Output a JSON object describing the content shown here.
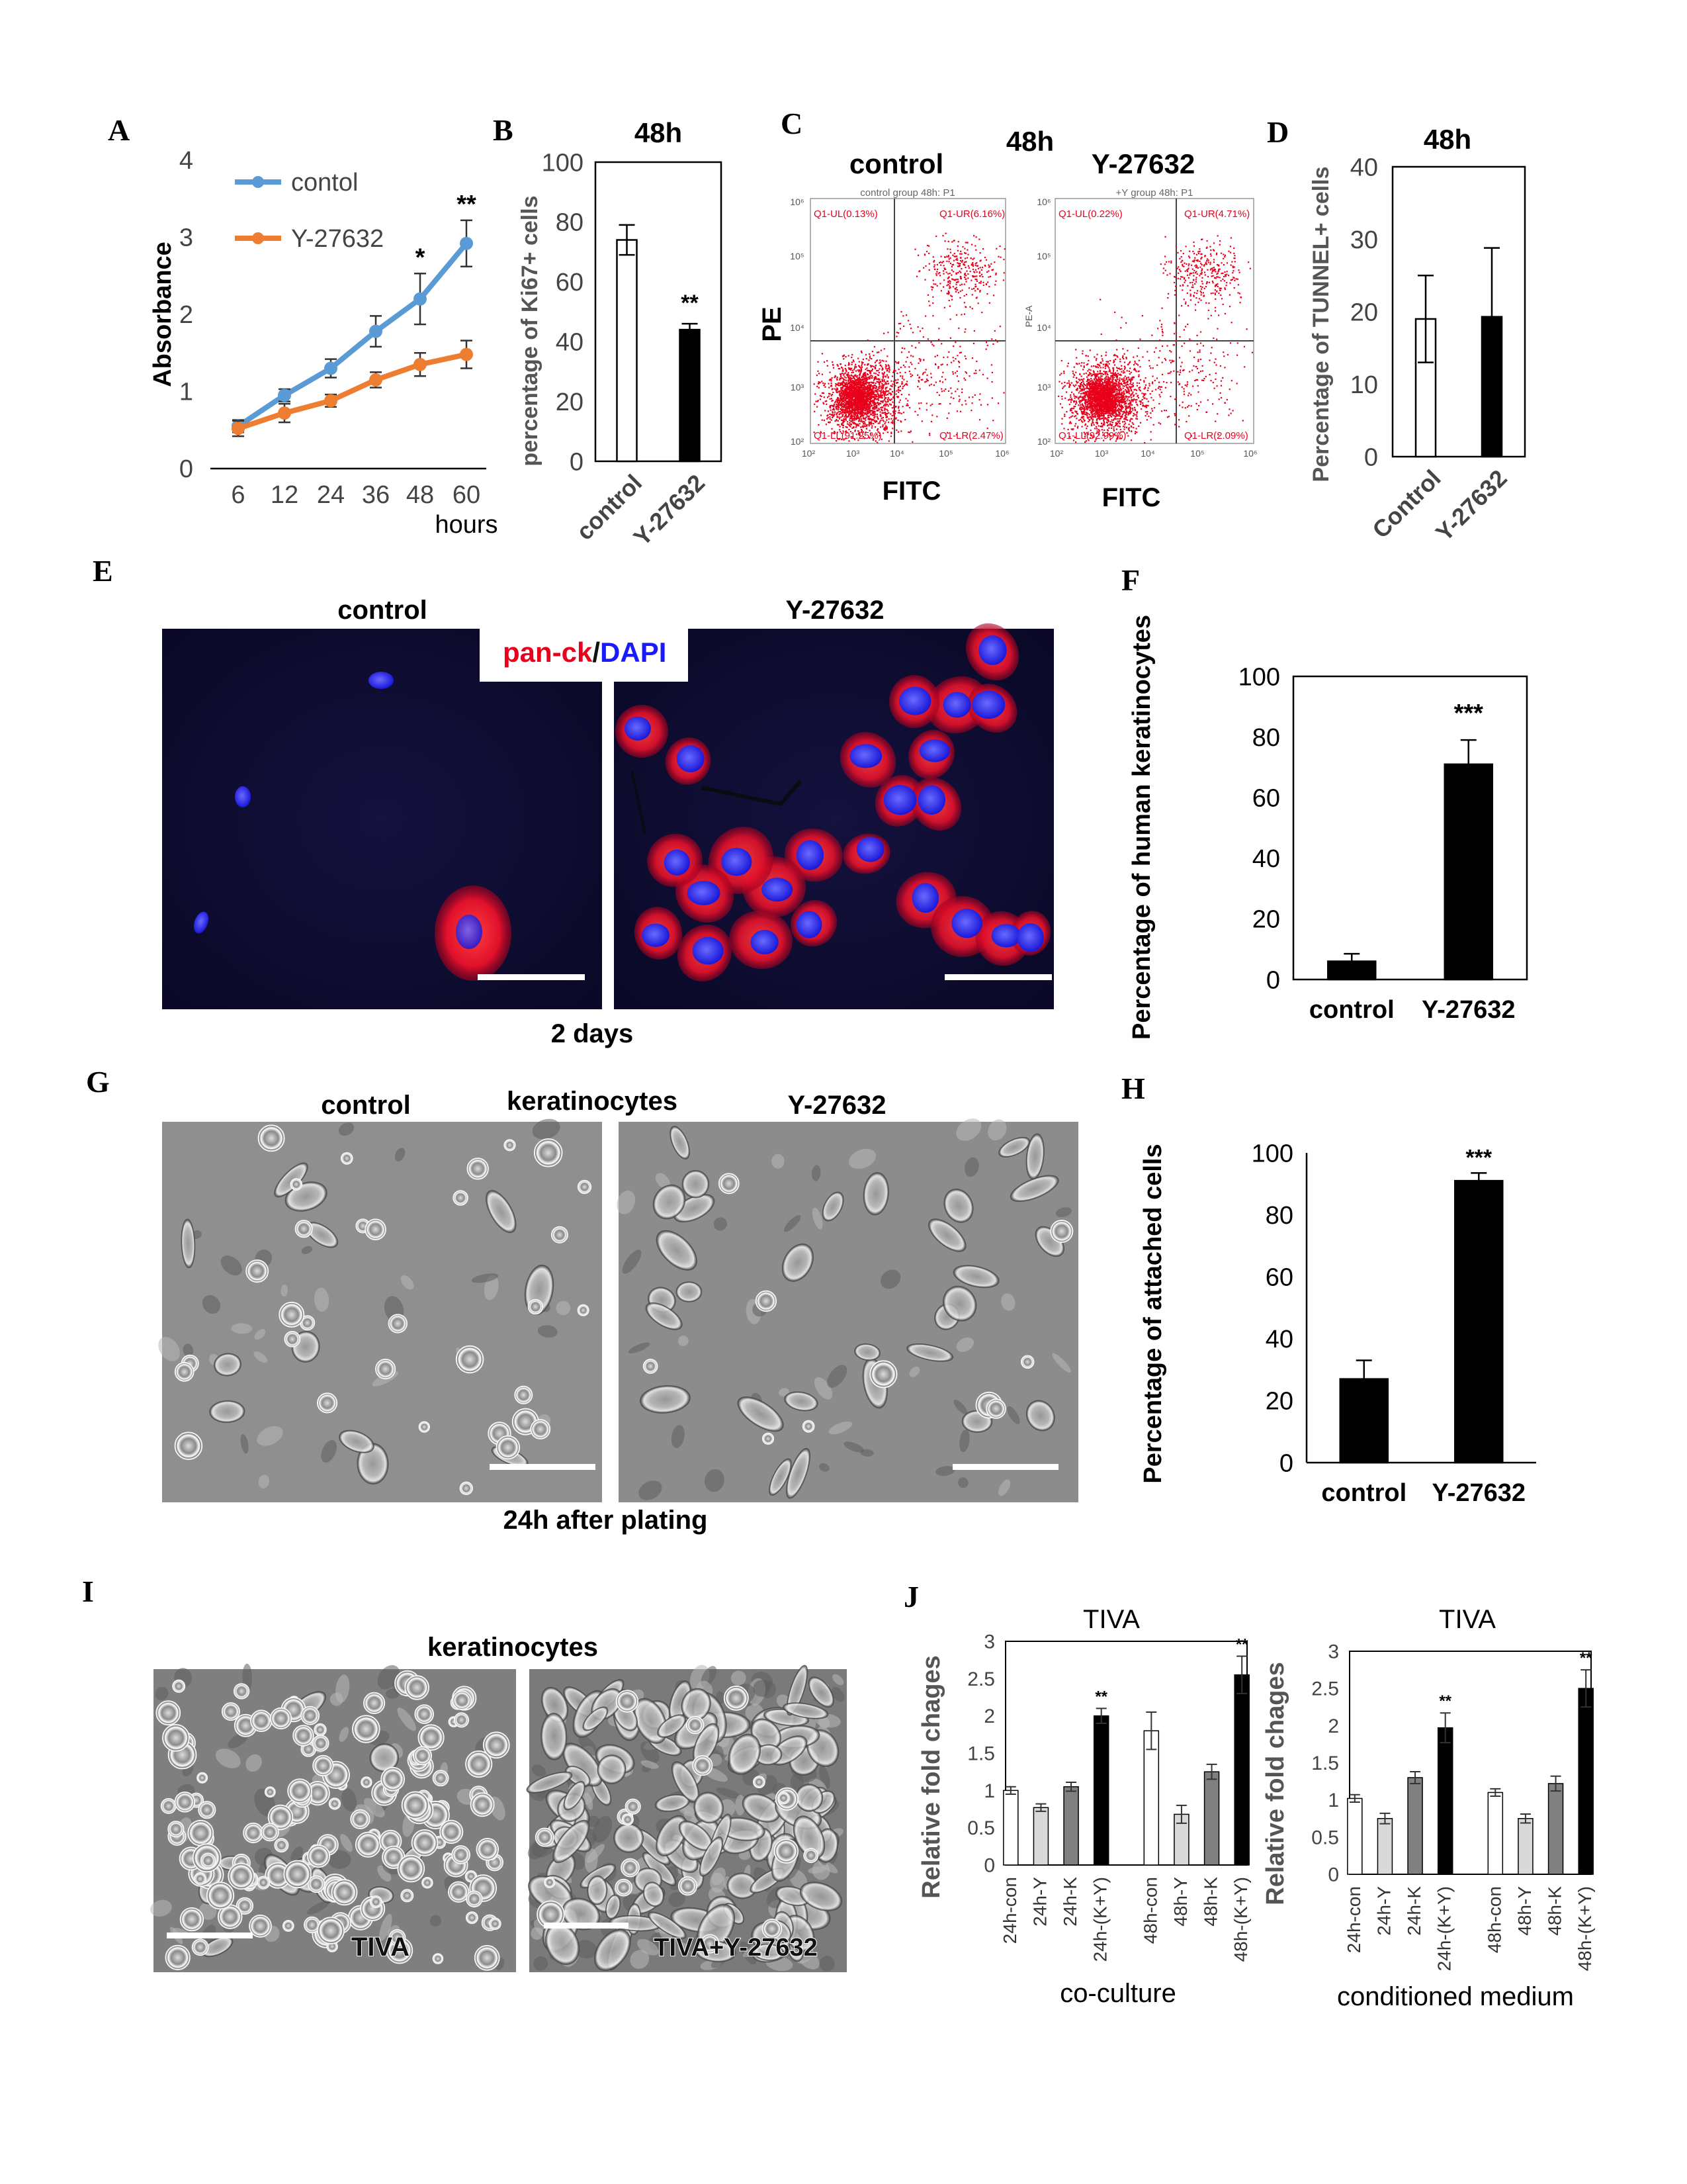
{
  "panel_letters": [
    "A",
    "B",
    "C",
    "D",
    "E",
    "F",
    "G",
    "H",
    "I",
    "J"
  ],
  "colors": {
    "control": "#5b9bd5",
    "y27632": "#ed7d31",
    "bar_black": "#000000",
    "bar_white": "#ffffff",
    "bar_light": "#d9d9d9",
    "bar_mid": "#808080",
    "flow_dots": "#e8001c",
    "panck": "#e8001c",
    "dapi": "#1a1aff"
  },
  "panel_C": {
    "title": "48h",
    "control_label": "control",
    "y_label": "Y-27632",
    "ylabel": "PE",
    "ylabel_alt": "PE-A",
    "xlabel": "FITC",
    "plot_control": {
      "header": "control group 48h: P1",
      "q_ul": "Q1-UL(0.13%)",
      "q_ur": "Q1-UR(6.16%)",
      "q_ll": "Q1-LL(91.25%)",
      "q_lr": "Q1-LR(2.47%)"
    },
    "plot_y": {
      "header": "+Y group 48h: P1",
      "q_ul": "Q1-UL(0.22%)",
      "q_ur": "Q1-UR(4.71%)",
      "q_ll": "Q1-LL(92.99%)",
      "q_lr": "Q1-LR(2.09%)"
    },
    "axis_ticks": [
      "10²",
      "10³",
      "10⁴",
      "10⁵",
      "10⁶"
    ]
  },
  "panel_E": {
    "control_label": "control",
    "y_label": "Y-27632",
    "stain_red": "pan-ck",
    "stain_sep": "/",
    "stain_blue": "DAPI",
    "caption": "2 days"
  },
  "panel_G": {
    "control_label": "control",
    "title": "keratinocytes",
    "y_label": "Y-27632",
    "caption": "24h after plating"
  },
  "panel_I": {
    "title": "keratinocytes",
    "left_label": "TIVA",
    "right_label": "TIVA+Y-27632"
  },
  "chart_data": [
    {
      "id": "A",
      "type": "line",
      "categories": [
        "6",
        "12",
        "24",
        "36",
        "48",
        "60"
      ],
      "xlabel": "hours",
      "ylabel": "Absorbance",
      "ylim": [
        0,
        4
      ],
      "yticks": [
        "0",
        "1",
        "2",
        "3",
        "4"
      ],
      "legend_position": "top-left",
      "series": [
        {
          "name": "contol",
          "color": "#5b9bd5",
          "values": [
            0.55,
            0.95,
            1.3,
            1.78,
            2.2,
            2.92
          ],
          "errors": [
            0.08,
            0.08,
            0.12,
            0.2,
            0.33,
            0.3
          ]
        },
        {
          "name": "Y-27632",
          "color": "#ed7d31",
          "values": [
            0.52,
            0.72,
            0.88,
            1.15,
            1.35,
            1.48
          ],
          "errors": [
            0.1,
            0.12,
            0.08,
            0.1,
            0.15,
            0.18
          ]
        }
      ],
      "annotations": [
        {
          "category": "48",
          "text": "*"
        },
        {
          "category": "60",
          "text": "**"
        }
      ]
    },
    {
      "id": "B",
      "type": "bar",
      "title": "48h",
      "categories": [
        "control",
        "Y-27632"
      ],
      "values": [
        74,
        44
      ],
      "errors": [
        5,
        2
      ],
      "fills": [
        "#ffffff",
        "#000000"
      ],
      "ylabel": "percentage of Ki67+ cells",
      "ylim": [
        0,
        100
      ],
      "yticks": [
        "0",
        "20",
        "40",
        "60",
        "80",
        "100"
      ],
      "annotations": [
        "",
        "**"
      ]
    },
    {
      "id": "D",
      "type": "bar",
      "title": "48h",
      "categories": [
        "Control",
        "Y-27632"
      ],
      "values": [
        19,
        19.3
      ],
      "errors": [
        6,
        9.5
      ],
      "fills": [
        "#ffffff",
        "#000000"
      ],
      "ylabel": "Percentage of TUNNEL+ cells",
      "ylim": [
        0,
        40
      ],
      "yticks": [
        "0",
        "10",
        "20",
        "30",
        "40"
      ]
    },
    {
      "id": "F",
      "type": "bar",
      "categories": [
        "control",
        "Y-27632"
      ],
      "values": [
        6,
        71
      ],
      "errors": [
        2.5,
        8
      ],
      "fills": [
        "#000000",
        "#000000"
      ],
      "ylabel": "Percentage of human keratinocytes",
      "ylim": [
        0,
        100
      ],
      "yticks": [
        "0",
        "20",
        "40",
        "60",
        "80",
        "100"
      ],
      "annotations": [
        "",
        "***"
      ]
    },
    {
      "id": "H",
      "type": "bar",
      "categories": [
        "control",
        "Y-27632"
      ],
      "values": [
        27,
        91
      ],
      "errors": [
        6,
        2.5
      ],
      "fills": [
        "#000000",
        "#000000"
      ],
      "ylabel": "Percentage of attached cells",
      "ylim": [
        0,
        100
      ],
      "yticks": [
        "0",
        "20",
        "40",
        "60",
        "80",
        "100"
      ],
      "annotations": [
        "",
        "***"
      ]
    },
    {
      "id": "J1",
      "type": "bar",
      "title": "TIVA",
      "caption": "co-culture",
      "categories": [
        "24h-con",
        "24h-Y",
        "24h-K",
        "24h-(K+Y)",
        "48h-con",
        "48h-Y",
        "48h-K",
        "48h-(K+Y)"
      ],
      "values": [
        1.0,
        0.77,
        1.05,
        2.0,
        1.8,
        0.68,
        1.25,
        2.55
      ],
      "errors": [
        0.05,
        0.05,
        0.06,
        0.1,
        0.25,
        0.12,
        0.1,
        0.25
      ],
      "fills": [
        "#ffffff",
        "#d9d9d9",
        "#808080",
        "#000000",
        "#ffffff",
        "#d9d9d9",
        "#808080",
        "#000000"
      ],
      "ylabel": "Relative fold chages",
      "ylim": [
        0,
        3
      ],
      "yticks": [
        "0",
        "0.5",
        "1",
        "1.5",
        "2",
        "2.5",
        "3"
      ],
      "annotations": [
        "",
        "",
        "",
        "**",
        "",
        "",
        "",
        "**"
      ]
    },
    {
      "id": "J2",
      "type": "bar",
      "title": "TIVA",
      "caption": "conditioned medium",
      "categories": [
        "24h-con",
        "24h-Y",
        "24h-K",
        "24h-(K+Y)",
        "48h-con",
        "48h-Y",
        "48h-K",
        "48h-(K+Y)"
      ],
      "values": [
        1.02,
        0.75,
        1.3,
        1.97,
        1.1,
        0.75,
        1.22,
        2.5
      ],
      "errors": [
        0.05,
        0.07,
        0.08,
        0.2,
        0.05,
        0.06,
        0.1,
        0.25
      ],
      "fills": [
        "#ffffff",
        "#d9d9d9",
        "#808080",
        "#000000",
        "#ffffff",
        "#d9d9d9",
        "#808080",
        "#000000"
      ],
      "ylabel": "Relative fold chages",
      "ylim": [
        0,
        3
      ],
      "yticks": [
        "0",
        "0.5",
        "1",
        "1.5",
        "2",
        "2.5",
        "3"
      ],
      "annotations": [
        "",
        "",
        "",
        "**",
        "",
        "",
        "",
        "**"
      ]
    }
  ]
}
